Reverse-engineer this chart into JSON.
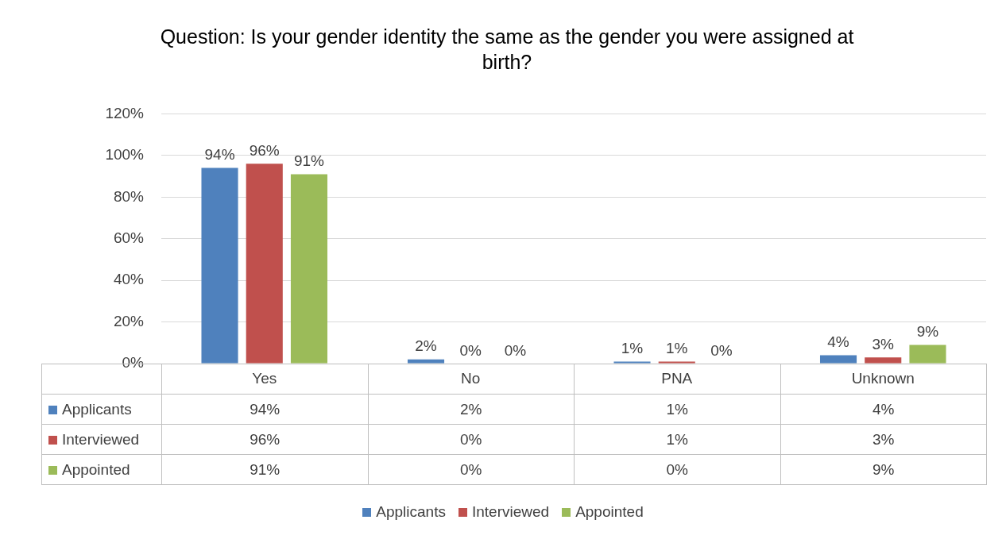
{
  "chart_data": {
    "type": "bar",
    "title": "Question: Is your gender identity the same as the gender you were assigned at birth?",
    "categories": [
      "Yes",
      "No",
      "PNA",
      "Unknown"
    ],
    "series": [
      {
        "name": "Applicants",
        "color": "#4f81bd",
        "values": [
          94,
          2,
          1,
          4
        ],
        "value_labels": [
          "94%",
          "2%",
          "1%",
          "4%"
        ]
      },
      {
        "name": "Interviewed",
        "color": "#c0504d",
        "values": [
          96,
          0,
          1,
          3
        ],
        "value_labels": [
          "96%",
          "0%",
          "1%",
          "3%"
        ]
      },
      {
        "name": "Appointed",
        "color": "#9bbb59",
        "values": [
          91,
          0,
          0,
          9
        ],
        "value_labels": [
          "91%",
          "0%",
          "0%",
          "9%"
        ]
      }
    ],
    "ylim": [
      0,
      120
    ],
    "yticks": [
      {
        "value": 0,
        "label": "0%"
      },
      {
        "value": 20,
        "label": "20%"
      },
      {
        "value": 40,
        "label": "40%"
      },
      {
        "value": 60,
        "label": "60%"
      },
      {
        "value": 80,
        "label": "80%"
      },
      {
        "value": 100,
        "label": "100%"
      },
      {
        "value": 120,
        "label": "120%"
      }
    ],
    "grid": "y",
    "legend": "bottom"
  }
}
